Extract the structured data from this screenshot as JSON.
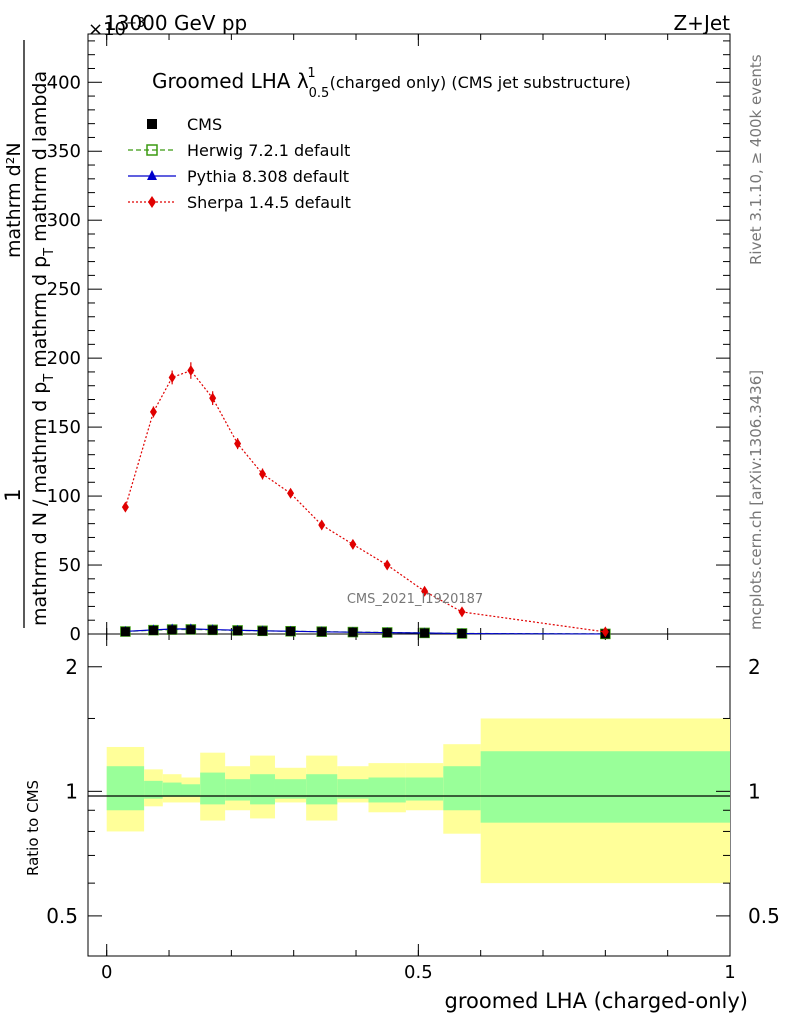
{
  "header": {
    "left": "13000 GeV pp",
    "right": "Z+Jet",
    "exponent": "×10",
    "exponent_power": "−3"
  },
  "plot_title": {
    "main": "Groomed LHA λ",
    "sup": "1",
    "sub": "0.5",
    "rest": "(charged only) (CMS jet substructure)"
  },
  "side_text": {
    "rivet": "Rivet 3.1.10, ≥ 400k events",
    "mcplots": "mcplots.cern.ch [arXiv:1306.3436]"
  },
  "watermark": "CMS_2021_I1920187",
  "y_label": {
    "numerator": "1",
    "denominator": "mathrm d N / mathrm d p",
    "sub": "T",
    "rest": "mathrm d p",
    "rest_sub": "T",
    "rest2": "mathrm d lambda",
    "top": "mathrm d²N"
  },
  "ratio_ylabel": "Ratio to CMS",
  "x_label": "groomed LHA (charged-only)",
  "chart_data": {
    "type": "line",
    "x_ticks": [
      "0",
      "0.5",
      "1"
    ],
    "y_ticks_main": [
      "0",
      "50",
      "100",
      "150",
      "200",
      "250",
      "300",
      "350",
      "400"
    ],
    "y_ticks_ratio": [
      "0.5",
      "1",
      "2"
    ],
    "xlim": [
      -0.03,
      1.0
    ],
    "ylim_main": [
      0,
      435
    ],
    "ylim_ratio": [
      0.4,
      2.4
    ],
    "bins": [
      [
        0.0,
        0.06
      ],
      [
        0.06,
        0.09
      ],
      [
        0.09,
        0.12
      ],
      [
        0.12,
        0.15
      ],
      [
        0.15,
        0.19
      ],
      [
        0.19,
        0.23
      ],
      [
        0.23,
        0.27
      ],
      [
        0.27,
        0.32
      ],
      [
        0.32,
        0.37
      ],
      [
        0.37,
        0.42
      ],
      [
        0.42,
        0.48
      ],
      [
        0.48,
        0.54
      ],
      [
        0.54,
        0.6
      ],
      [
        0.6,
        1.0
      ]
    ],
    "series": [
      {
        "name": "CMS",
        "color": "#000000",
        "marker": "square",
        "x": [
          0.03,
          0.075,
          0.105,
          0.135,
          0.17,
          0.21,
          0.25,
          0.295,
          0.345,
          0.395,
          0.45,
          0.51,
          0.57,
          0.8
        ],
        "y": [
          1.7,
          2.6,
          3.0,
          3.1,
          2.8,
          2.4,
          2.1,
          1.9,
          1.6,
          1.3,
          1.0,
          0.7,
          0.35,
          0.06
        ]
      },
      {
        "name": "Herwig 7.2.1 default",
        "color": "#3b9a10",
        "marker": "open-square",
        "dash": "5,3",
        "x": [
          0.03,
          0.075,
          0.105,
          0.135,
          0.17,
          0.21,
          0.25,
          0.295,
          0.345,
          0.395,
          0.45,
          0.51,
          0.57,
          0.8
        ],
        "y": [
          1.8,
          2.8,
          3.2,
          3.3,
          3.0,
          2.6,
          2.3,
          2.0,
          1.7,
          1.4,
          1.1,
          0.8,
          0.4,
          0.07
        ]
      },
      {
        "name": "Pythia 8.308 default",
        "color": "#0000cc",
        "marker": "triangle",
        "dash": "",
        "x": [
          0.03,
          0.075,
          0.105,
          0.135,
          0.17,
          0.21,
          0.25,
          0.295,
          0.345,
          0.395,
          0.45,
          0.51,
          0.57,
          0.8
        ],
        "y": [
          1.9,
          3.0,
          3.6,
          3.7,
          3.2,
          2.7,
          2.3,
          2.0,
          1.6,
          1.3,
          1.0,
          0.7,
          0.3,
          0.05
        ]
      },
      {
        "name": "Sherpa 1.4.5 default",
        "color": "#e00000",
        "marker": "diamond",
        "dash": "2,2",
        "x": [
          0.03,
          0.075,
          0.105,
          0.135,
          0.17,
          0.21,
          0.25,
          0.295,
          0.345,
          0.395,
          0.45,
          0.51,
          0.57,
          0.8
        ],
        "y": [
          92,
          161,
          186,
          191,
          171,
          138,
          116,
          102,
          79,
          65,
          50,
          31,
          16,
          1.5
        ],
        "err": [
          2,
          4,
          5,
          6,
          5,
          4,
          4,
          3,
          3,
          2,
          2,
          2,
          1.5,
          0.5
        ]
      }
    ],
    "ratio_bands": {
      "yellow_lo": [
        0.8,
        0.92,
        0.94,
        0.94,
        0.85,
        0.9,
        0.86,
        0.94,
        0.85,
        0.94,
        0.89,
        0.9,
        0.79,
        0.6
      ],
      "yellow_hi": [
        1.28,
        1.13,
        1.1,
        1.08,
        1.24,
        1.15,
        1.22,
        1.14,
        1.22,
        1.15,
        1.17,
        1.17,
        1.3,
        1.5
      ],
      "green_lo": [
        0.9,
        0.96,
        0.97,
        0.97,
        0.93,
        0.95,
        0.93,
        0.96,
        0.93,
        0.96,
        0.94,
        0.95,
        0.9,
        0.84
      ],
      "green_hi": [
        1.15,
        1.06,
        1.05,
        1.04,
        1.11,
        1.07,
        1.1,
        1.07,
        1.1,
        1.07,
        1.08,
        1.08,
        1.15,
        1.25
      ]
    }
  }
}
